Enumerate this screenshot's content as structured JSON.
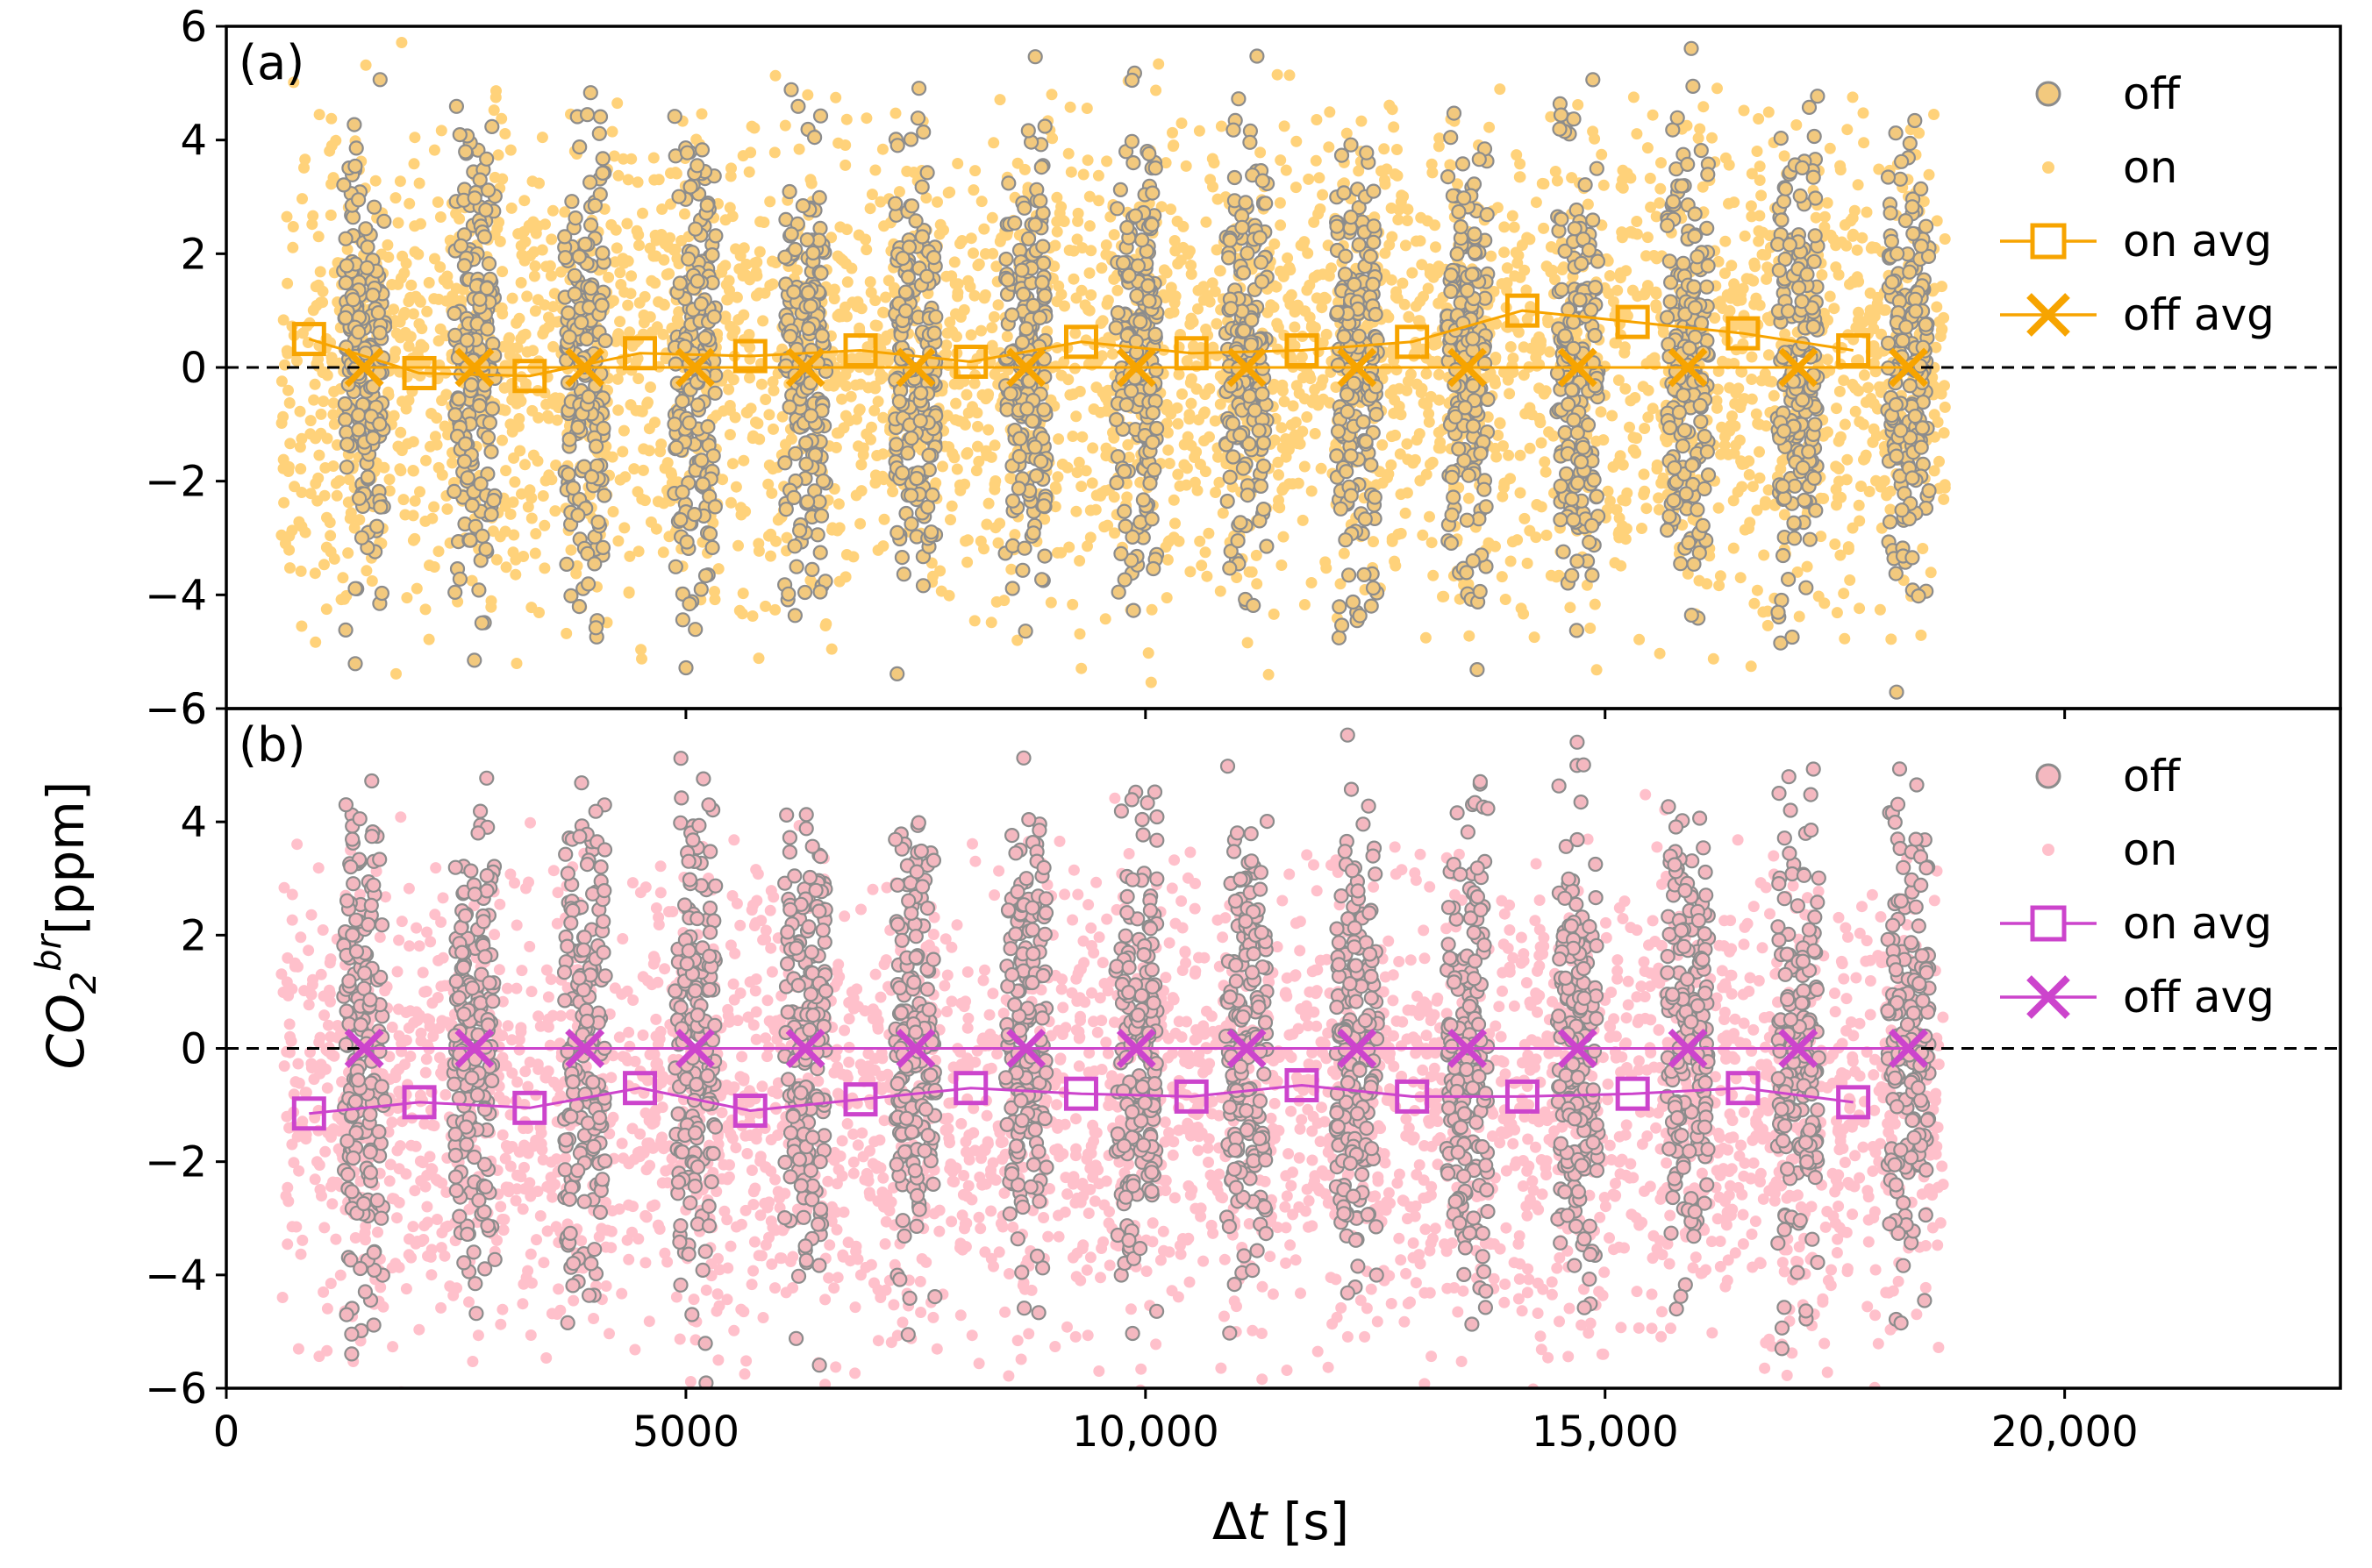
{
  "figure": {
    "xlabel_prefix": "Δ",
    "xlabel_var": "t",
    "xlabel_unit": " [s]",
    "ylabel_main": "CO",
    "ylabel_sub": "2",
    "ylabel_sup": "br",
    "ylabel_unit": "[ppm]"
  },
  "chart_data": [
    {
      "type": "scatter",
      "panel_label": "(a)",
      "xlim": [
        0,
        23000
      ],
      "ylim": [
        -6,
        6
      ],
      "xticks": [
        0,
        5000,
        10000,
        15000,
        20000
      ],
      "xtick_labels": [
        "0",
        "5000",
        "10,000",
        "15,000",
        "20,000"
      ],
      "yticks": [
        -6,
        -4,
        -2,
        0,
        2,
        4,
        6
      ],
      "ytick_labels": [
        "−6",
        "−4",
        "−2",
        "0",
        "2",
        "4",
        "6"
      ],
      "reference_line_y": 0,
      "legend_position": "top-right",
      "colors": {
        "on": "#FFD27A",
        "off_fill": "#F2C97E",
        "off_edge": "#8C8C8C",
        "avg": "#F7A400"
      },
      "legend": [
        "off",
        "on",
        "on avg",
        "off avg"
      ],
      "scatter_on": {
        "x_range": [
          600,
          18700
        ],
        "y_spread": 6
      },
      "scatter_off": {
        "x_centers": [
          1500,
          2700,
          3900,
          5100,
          6300,
          7500,
          8700,
          9900,
          11100,
          12300,
          13500,
          14700,
          15900,
          17100,
          18300
        ],
        "band_width": 450,
        "y_spread": 6
      },
      "series": [
        {
          "name": "on avg",
          "marker": "square",
          "x": [
            900,
            2100,
            3300,
            4500,
            5700,
            6900,
            8100,
            9300,
            10500,
            11700,
            12900,
            14100,
            15300,
            16500,
            17700
          ],
          "values": [
            0.5,
            -0.1,
            -0.15,
            0.25,
            0.2,
            0.3,
            0.1,
            0.45,
            0.25,
            0.3,
            0.45,
            1.0,
            0.8,
            0.6,
            0.3
          ]
        },
        {
          "name": "off avg",
          "marker": "x",
          "x": [
            1500,
            2700,
            3900,
            5100,
            6300,
            7500,
            8700,
            9900,
            11100,
            12300,
            13500,
            14700,
            15900,
            17100,
            18300
          ],
          "values": [
            0,
            0,
            0,
            0,
            0,
            0,
            0,
            0,
            0,
            0,
            0,
            0,
            0,
            0,
            0
          ]
        }
      ]
    },
    {
      "type": "scatter",
      "panel_label": "(b)",
      "xlim": [
        0,
        23000
      ],
      "ylim": [
        -6,
        6
      ],
      "xticks": [
        0,
        5000,
        10000,
        15000,
        20000
      ],
      "xtick_labels": [
        "0",
        "5000",
        "10,000",
        "15,000",
        "20,000"
      ],
      "yticks": [
        -6,
        -4,
        -2,
        0,
        2,
        4,
        6
      ],
      "ytick_labels": [
        "−6",
        "−4",
        "−2",
        "0",
        "2",
        "4",
        "6"
      ],
      "reference_line_y": 0,
      "legend_position": "top-right",
      "colors": {
        "on": "#FFC0CB",
        "off_fill": "#F4B8C0",
        "off_edge": "#8C8C8C",
        "avg": "#CC44CC"
      },
      "legend": [
        "off",
        "on",
        "on avg",
        "off avg"
      ],
      "scatter_on": {
        "x_range": [
          600,
          18700
        ],
        "y_spread": 6,
        "y_offset": -1
      },
      "scatter_off": {
        "x_centers": [
          1500,
          2700,
          3900,
          5100,
          6300,
          7500,
          8700,
          9900,
          11100,
          12300,
          13500,
          14700,
          15900,
          17100,
          18300
        ],
        "band_width": 450,
        "y_spread": 6
      },
      "series": [
        {
          "name": "on avg",
          "marker": "square",
          "x": [
            900,
            2100,
            3300,
            4500,
            5700,
            6900,
            8100,
            9300,
            10500,
            11700,
            12900,
            14100,
            15300,
            16500,
            17700
          ],
          "values": [
            -1.15,
            -0.95,
            -1.05,
            -0.7,
            -1.1,
            -0.9,
            -0.7,
            -0.8,
            -0.85,
            -0.65,
            -0.85,
            -0.85,
            -0.8,
            -0.7,
            -0.95
          ]
        },
        {
          "name": "off avg",
          "marker": "x",
          "x": [
            1500,
            2700,
            3900,
            5100,
            6300,
            7500,
            8700,
            9900,
            11100,
            12300,
            13500,
            14700,
            15900,
            17100,
            18300
          ],
          "values": [
            0,
            0,
            0,
            0,
            0,
            0,
            0,
            0,
            0,
            0,
            0,
            0,
            0,
            0,
            0
          ]
        }
      ]
    }
  ]
}
